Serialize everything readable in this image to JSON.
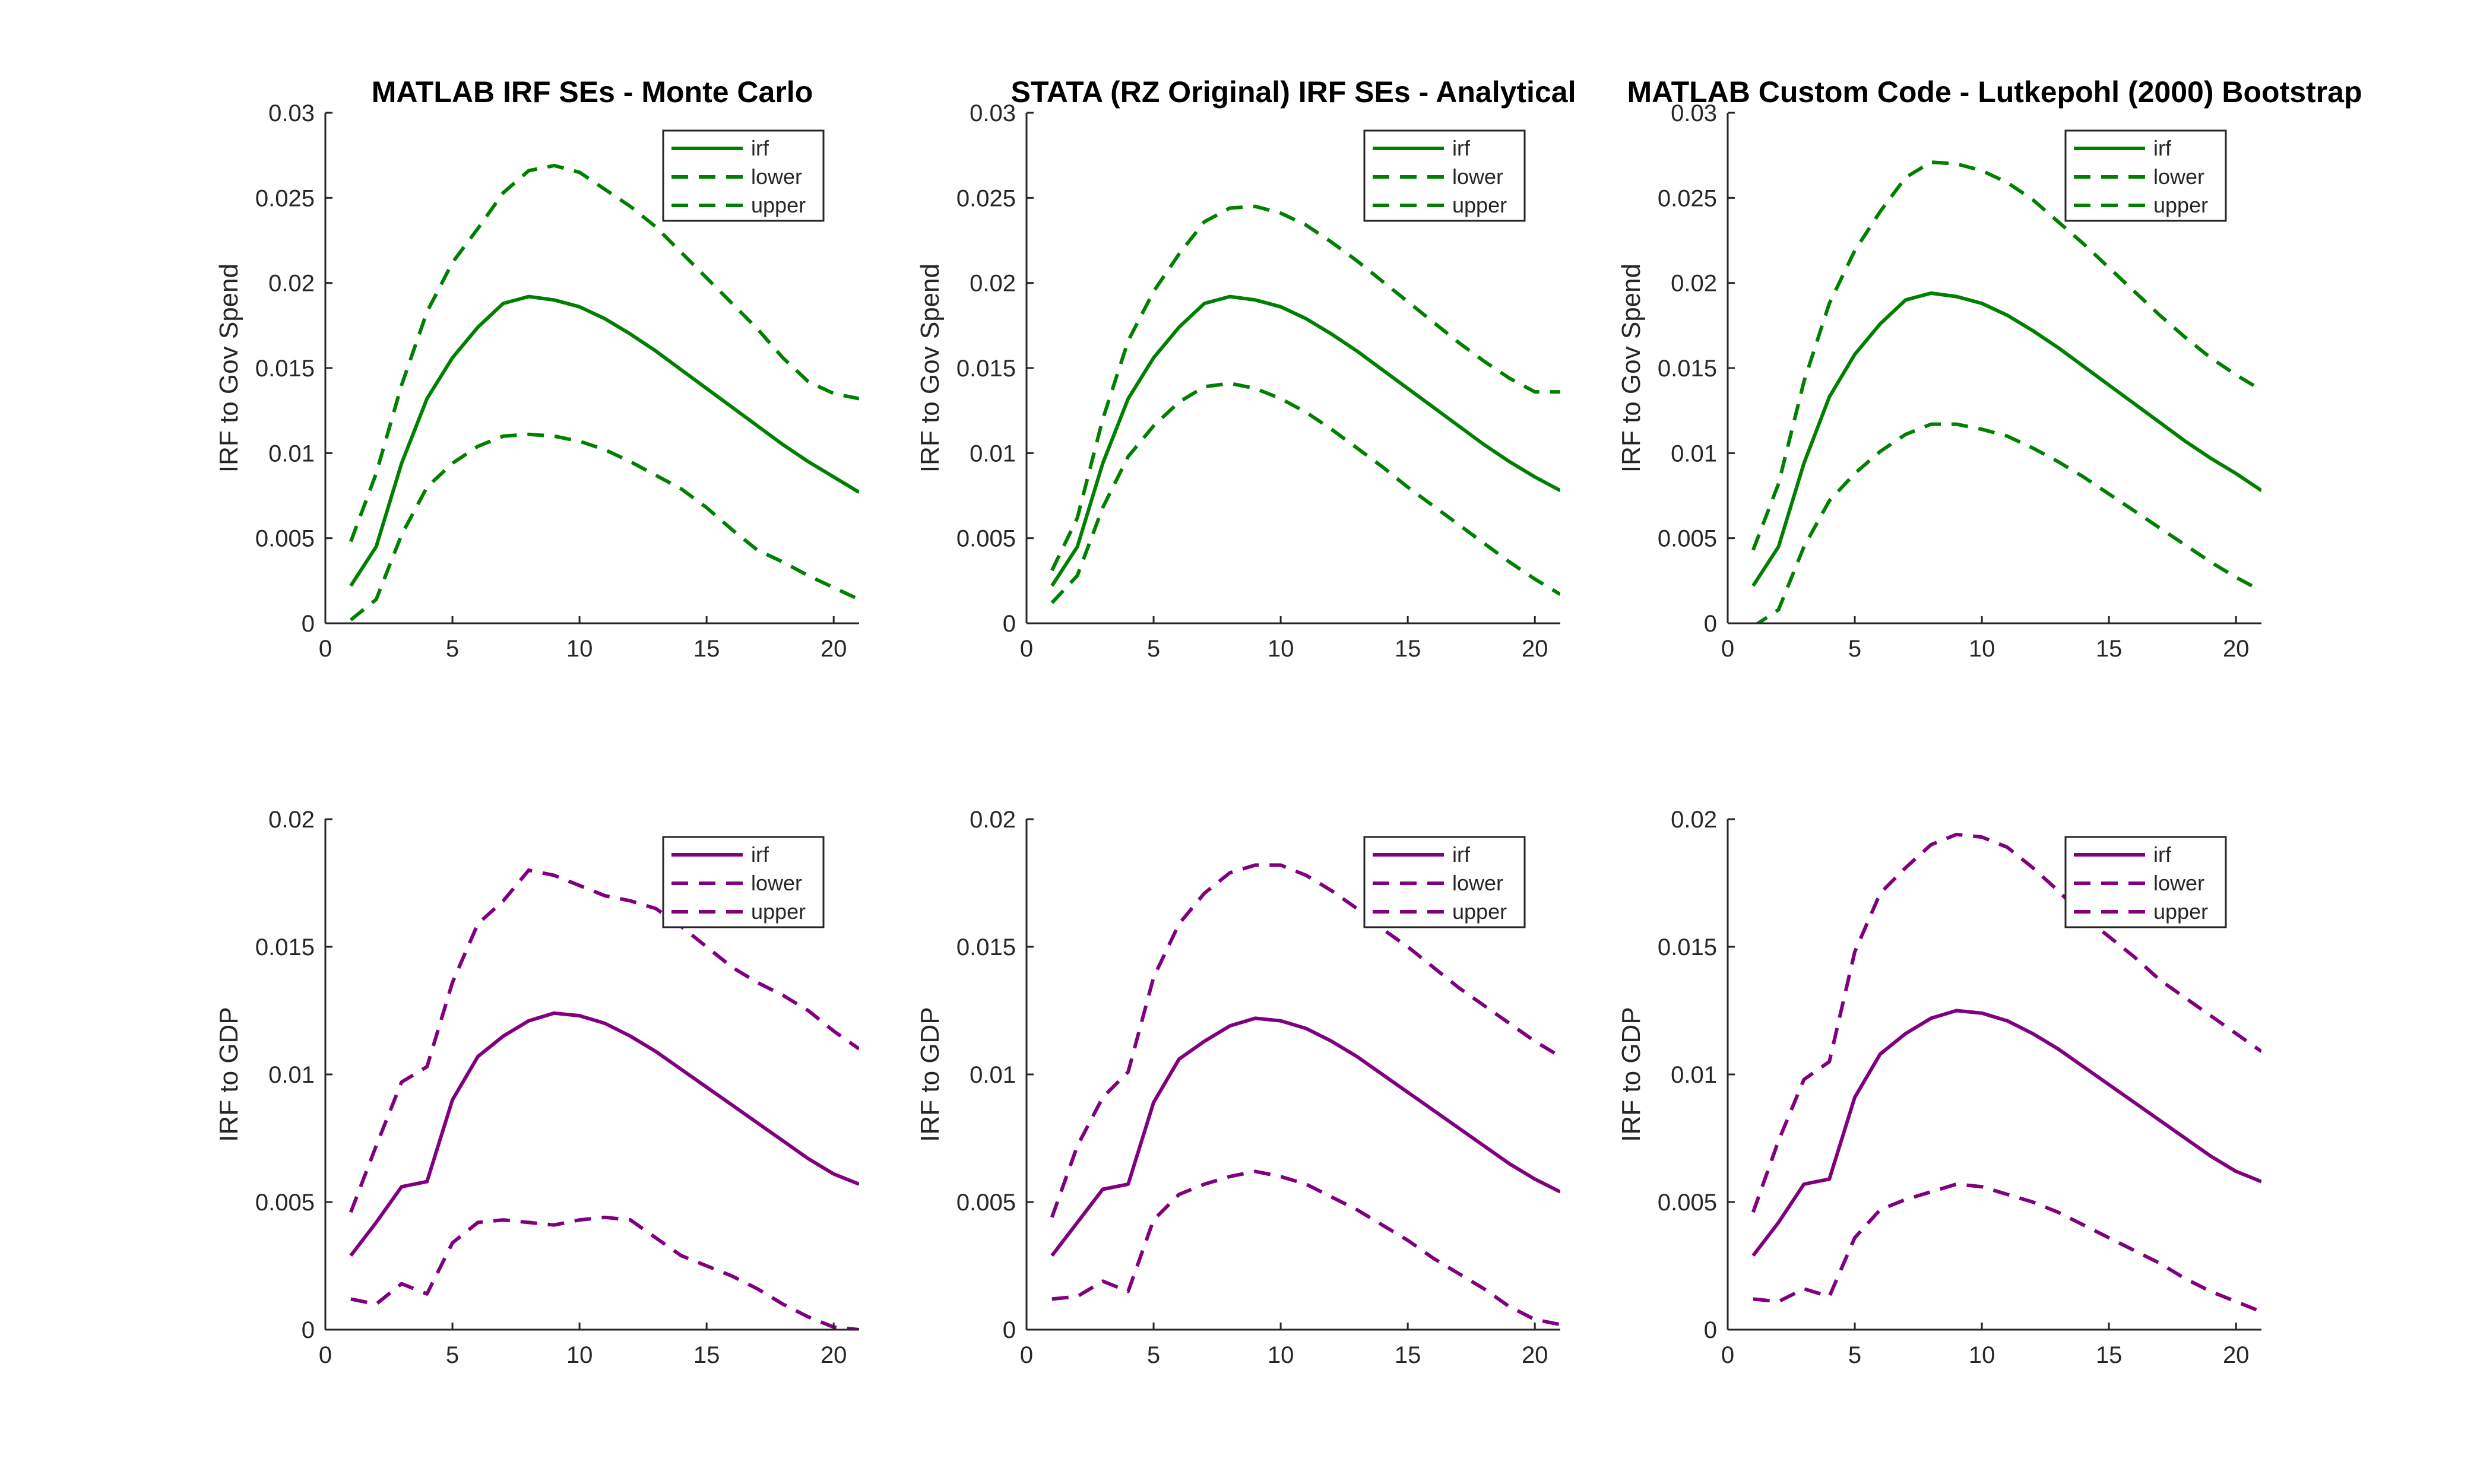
{
  "chart_data": [
    {
      "type": "line",
      "title": "MATLAB IRF SEs - Monte Carlo",
      "xlabel": "",
      "ylabel": "IRF to Gov Spend",
      "xlim": [
        0,
        21
      ],
      "ylim": [
        0,
        0.03
      ],
      "xticks": [
        0,
        5,
        10,
        15,
        20
      ],
      "yticks": [
        0,
        0.005,
        0.01,
        0.015,
        0.02,
        0.025,
        0.03
      ],
      "ytick_labels": [
        "0",
        "0.005",
        "0.01",
        "0.015",
        "0.02",
        "0.025",
        "0.03"
      ],
      "grid": false,
      "legend": "top-right",
      "color": "#008000",
      "x": [
        1,
        2,
        3,
        4,
        5,
        6,
        7,
        8,
        9,
        10,
        11,
        12,
        13,
        14,
        15,
        16,
        17,
        18,
        19,
        20,
        21
      ],
      "series": [
        {
          "name": "irf",
          "style": "solid",
          "values": [
            0.0022,
            0.0045,
            0.0094,
            0.0132,
            0.0156,
            0.0174,
            0.0188,
            0.0192,
            0.019,
            0.0186,
            0.0179,
            0.017,
            0.016,
            0.0149,
            0.0138,
            0.0127,
            0.0116,
            0.0105,
            0.0095,
            0.0086,
            0.0077
          ]
        },
        {
          "name": "lower",
          "style": "dashed",
          "values": [
            0.0002,
            0.0014,
            0.0052,
            0.008,
            0.0094,
            0.0104,
            0.011,
            0.0111,
            0.011,
            0.0107,
            0.0102,
            0.0095,
            0.0087,
            0.0079,
            0.0068,
            0.0055,
            0.0043,
            0.0036,
            0.0028,
            0.0021,
            0.0014
          ]
        },
        {
          "name": "upper",
          "style": "dashed",
          "values": [
            0.0048,
            0.0088,
            0.014,
            0.0183,
            0.0212,
            0.0232,
            0.0253,
            0.0266,
            0.0269,
            0.0265,
            0.0255,
            0.0245,
            0.0233,
            0.0218,
            0.0203,
            0.0188,
            0.0173,
            0.0156,
            0.0142,
            0.0135,
            0.0132
          ]
        }
      ]
    },
    {
      "type": "line",
      "title": "STATA (RZ Original) IRF SEs - Analytical",
      "xlabel": "",
      "ylabel": "IRF to Gov Spend",
      "xlim": [
        0,
        21
      ],
      "ylim": [
        0,
        0.03
      ],
      "xticks": [
        0,
        5,
        10,
        15,
        20
      ],
      "yticks": [
        0,
        0.005,
        0.01,
        0.015,
        0.02,
        0.025,
        0.03
      ],
      "ytick_labels": [
        "0",
        "0.005",
        "0.01",
        "0.015",
        "0.02",
        "0.025",
        "0.03"
      ],
      "grid": false,
      "legend": "top-right",
      "color": "#008000",
      "x": [
        1,
        2,
        3,
        4,
        5,
        6,
        7,
        8,
        9,
        10,
        11,
        12,
        13,
        14,
        15,
        16,
        17,
        18,
        19,
        20,
        21
      ],
      "series": [
        {
          "name": "irf",
          "style": "solid",
          "values": [
            0.0022,
            0.0045,
            0.0094,
            0.0132,
            0.0156,
            0.0174,
            0.0188,
            0.0192,
            0.019,
            0.0186,
            0.0179,
            0.017,
            0.016,
            0.0149,
            0.0138,
            0.0127,
            0.0116,
            0.0105,
            0.0095,
            0.0086,
            0.0078
          ]
        },
        {
          "name": "lower",
          "style": "dashed",
          "values": [
            0.0012,
            0.0028,
            0.0068,
            0.0098,
            0.0116,
            0.013,
            0.0139,
            0.0141,
            0.0138,
            0.0132,
            0.0124,
            0.0114,
            0.0103,
            0.0092,
            0.008,
            0.0069,
            0.0058,
            0.0047,
            0.0036,
            0.0026,
            0.0017
          ]
        },
        {
          "name": "upper",
          "style": "dashed",
          "values": [
            0.0031,
            0.0062,
            0.012,
            0.0166,
            0.0195,
            0.0217,
            0.0236,
            0.0244,
            0.0245,
            0.0241,
            0.0234,
            0.0224,
            0.0213,
            0.0201,
            0.0189,
            0.0177,
            0.0165,
            0.0154,
            0.0144,
            0.0136,
            0.0136
          ]
        }
      ]
    },
    {
      "type": "line",
      "title": "MATLAB Custom Code - Lutkepohl (2000) Bootstrap",
      "xlabel": "",
      "ylabel": "IRF to Gov Spend",
      "xlim": [
        0,
        21
      ],
      "ylim": [
        0,
        0.03
      ],
      "xticks": [
        0,
        5,
        10,
        15,
        20
      ],
      "yticks": [
        0,
        0.005,
        0.01,
        0.015,
        0.02,
        0.025,
        0.03
      ],
      "ytick_labels": [
        "0",
        "0.005",
        "0.01",
        "0.015",
        "0.02",
        "0.025",
        "0.03"
      ],
      "grid": false,
      "legend": "top-right",
      "color": "#008000",
      "x": [
        1,
        2,
        3,
        4,
        5,
        6,
        7,
        8,
        9,
        10,
        11,
        12,
        13,
        14,
        15,
        16,
        17,
        18,
        19,
        20,
        21
      ],
      "series": [
        {
          "name": "irf",
          "style": "solid",
          "values": [
            0.0022,
            0.0045,
            0.0094,
            0.0133,
            0.0158,
            0.0176,
            0.019,
            0.0194,
            0.0192,
            0.0188,
            0.0181,
            0.0172,
            0.0162,
            0.0151,
            0.014,
            0.0129,
            0.0118,
            0.0107,
            0.0097,
            0.0088,
            0.0078
          ]
        },
        {
          "name": "lower",
          "style": "dashed",
          "values": [
            -0.0002,
            0.0008,
            0.0045,
            0.0072,
            0.0088,
            0.0101,
            0.0111,
            0.0117,
            0.0117,
            0.0114,
            0.011,
            0.0103,
            0.0095,
            0.0086,
            0.0076,
            0.0066,
            0.0056,
            0.0046,
            0.0036,
            0.0027,
            0.0019
          ]
        },
        {
          "name": "upper",
          "style": "dashed",
          "values": [
            0.0043,
            0.0082,
            0.0142,
            0.0188,
            0.0219,
            0.0242,
            0.0262,
            0.0271,
            0.027,
            0.0266,
            0.0259,
            0.0249,
            0.0236,
            0.0223,
            0.0209,
            0.0195,
            0.0181,
            0.0168,
            0.0156,
            0.0146,
            0.0137
          ]
        }
      ]
    },
    {
      "type": "line",
      "title": "",
      "xlabel": "",
      "ylabel": "IRF to GDP",
      "xlim": [
        0,
        21
      ],
      "ylim": [
        0,
        0.02
      ],
      "xticks": [
        0,
        5,
        10,
        15,
        20
      ],
      "yticks": [
        0,
        0.005,
        0.01,
        0.015,
        0.02
      ],
      "ytick_labels": [
        "0",
        "0.005",
        "0.01",
        "0.015",
        "0.02"
      ],
      "grid": false,
      "legend": "top-right",
      "color": "#800080",
      "x": [
        1,
        2,
        3,
        4,
        5,
        6,
        7,
        8,
        9,
        10,
        11,
        12,
        13,
        14,
        15,
        16,
        17,
        18,
        19,
        20,
        21
      ],
      "series": [
        {
          "name": "irf",
          "style": "solid",
          "values": [
            0.0029,
            0.0042,
            0.0056,
            0.0058,
            0.009,
            0.0107,
            0.0115,
            0.0121,
            0.0124,
            0.0123,
            0.012,
            0.0115,
            0.0109,
            0.0102,
            0.0095,
            0.0088,
            0.0081,
            0.0074,
            0.0067,
            0.0061,
            0.0057
          ]
        },
        {
          "name": "lower",
          "style": "dashed",
          "values": [
            0.0012,
            0.001,
            0.0018,
            0.0014,
            0.0034,
            0.0042,
            0.0043,
            0.0042,
            0.0041,
            0.0043,
            0.0044,
            0.0043,
            0.0036,
            0.0029,
            0.0025,
            0.0021,
            0.0016,
            0.001,
            0.0005,
            0.0001,
            0.0
          ]
        },
        {
          "name": "upper",
          "style": "dashed",
          "values": [
            0.0046,
            0.0072,
            0.0097,
            0.0103,
            0.0136,
            0.0159,
            0.0168,
            0.018,
            0.0178,
            0.0174,
            0.017,
            0.0168,
            0.0165,
            0.0158,
            0.015,
            0.0142,
            0.0136,
            0.0131,
            0.0125,
            0.0117,
            0.011
          ]
        }
      ]
    },
    {
      "type": "line",
      "title": "",
      "xlabel": "",
      "ylabel": "IRF to GDP",
      "xlim": [
        0,
        21
      ],
      "ylim": [
        0,
        0.02
      ],
      "xticks": [
        0,
        5,
        10,
        15,
        20
      ],
      "yticks": [
        0,
        0.005,
        0.01,
        0.015,
        0.02
      ],
      "ytick_labels": [
        "0",
        "0.005",
        "0.01",
        "0.015",
        "0.02"
      ],
      "grid": false,
      "legend": "top-right",
      "color": "#800080",
      "x": [
        1,
        2,
        3,
        4,
        5,
        6,
        7,
        8,
        9,
        10,
        11,
        12,
        13,
        14,
        15,
        16,
        17,
        18,
        19,
        20,
        21
      ],
      "series": [
        {
          "name": "irf",
          "style": "solid",
          "values": [
            0.0029,
            0.0042,
            0.0055,
            0.0057,
            0.0089,
            0.0106,
            0.0113,
            0.0119,
            0.0122,
            0.0121,
            0.0118,
            0.0113,
            0.0107,
            0.01,
            0.0093,
            0.0086,
            0.0079,
            0.0072,
            0.0065,
            0.0059,
            0.0054
          ]
        },
        {
          "name": "lower",
          "style": "dashed",
          "values": [
            0.0012,
            0.0013,
            0.0019,
            0.0015,
            0.0043,
            0.0053,
            0.0057,
            0.006,
            0.0062,
            0.006,
            0.0057,
            0.0052,
            0.0047,
            0.0041,
            0.0035,
            0.0028,
            0.0022,
            0.0016,
            0.0009,
            0.0004,
            0.0002
          ]
        },
        {
          "name": "upper",
          "style": "dashed",
          "values": [
            0.0044,
            0.0072,
            0.0091,
            0.0101,
            0.0138,
            0.0159,
            0.0171,
            0.0179,
            0.0182,
            0.0182,
            0.0178,
            0.0172,
            0.0165,
            0.0157,
            0.015,
            0.0142,
            0.0134,
            0.0127,
            0.012,
            0.0113,
            0.0107
          ]
        }
      ]
    },
    {
      "type": "line",
      "title": "",
      "xlabel": "",
      "ylabel": "IRF to GDP",
      "xlim": [
        0,
        21
      ],
      "ylim": [
        0,
        0.02
      ],
      "xticks": [
        0,
        5,
        10,
        15,
        20
      ],
      "yticks": [
        0,
        0.005,
        0.01,
        0.015,
        0.02
      ],
      "ytick_labels": [
        "0",
        "0.005",
        "0.01",
        "0.015",
        "0.02"
      ],
      "grid": false,
      "legend": "top-right",
      "color": "#800080",
      "x": [
        1,
        2,
        3,
        4,
        5,
        6,
        7,
        8,
        9,
        10,
        11,
        12,
        13,
        14,
        15,
        16,
        17,
        18,
        19,
        20,
        21
      ],
      "series": [
        {
          "name": "irf",
          "style": "solid",
          "values": [
            0.0029,
            0.0042,
            0.0057,
            0.0059,
            0.0091,
            0.0108,
            0.0116,
            0.0122,
            0.0125,
            0.0124,
            0.0121,
            0.0116,
            0.011,
            0.0103,
            0.0096,
            0.0089,
            0.0082,
            0.0075,
            0.0068,
            0.0062,
            0.0058
          ]
        },
        {
          "name": "lower",
          "style": "dashed",
          "values": [
            0.0012,
            0.0011,
            0.0016,
            0.0013,
            0.0036,
            0.0047,
            0.0051,
            0.0054,
            0.0057,
            0.0056,
            0.0053,
            0.005,
            0.0046,
            0.0041,
            0.0036,
            0.0031,
            0.0026,
            0.002,
            0.0015,
            0.0011,
            0.0007
          ]
        },
        {
          "name": "upper",
          "style": "dashed",
          "values": [
            0.0046,
            0.0074,
            0.0098,
            0.0105,
            0.0148,
            0.0171,
            0.0181,
            0.019,
            0.0194,
            0.0193,
            0.0189,
            0.0181,
            0.0172,
            0.0162,
            0.0154,
            0.0146,
            0.0137,
            0.013,
            0.0123,
            0.0116,
            0.0109
          ]
        }
      ]
    }
  ]
}
